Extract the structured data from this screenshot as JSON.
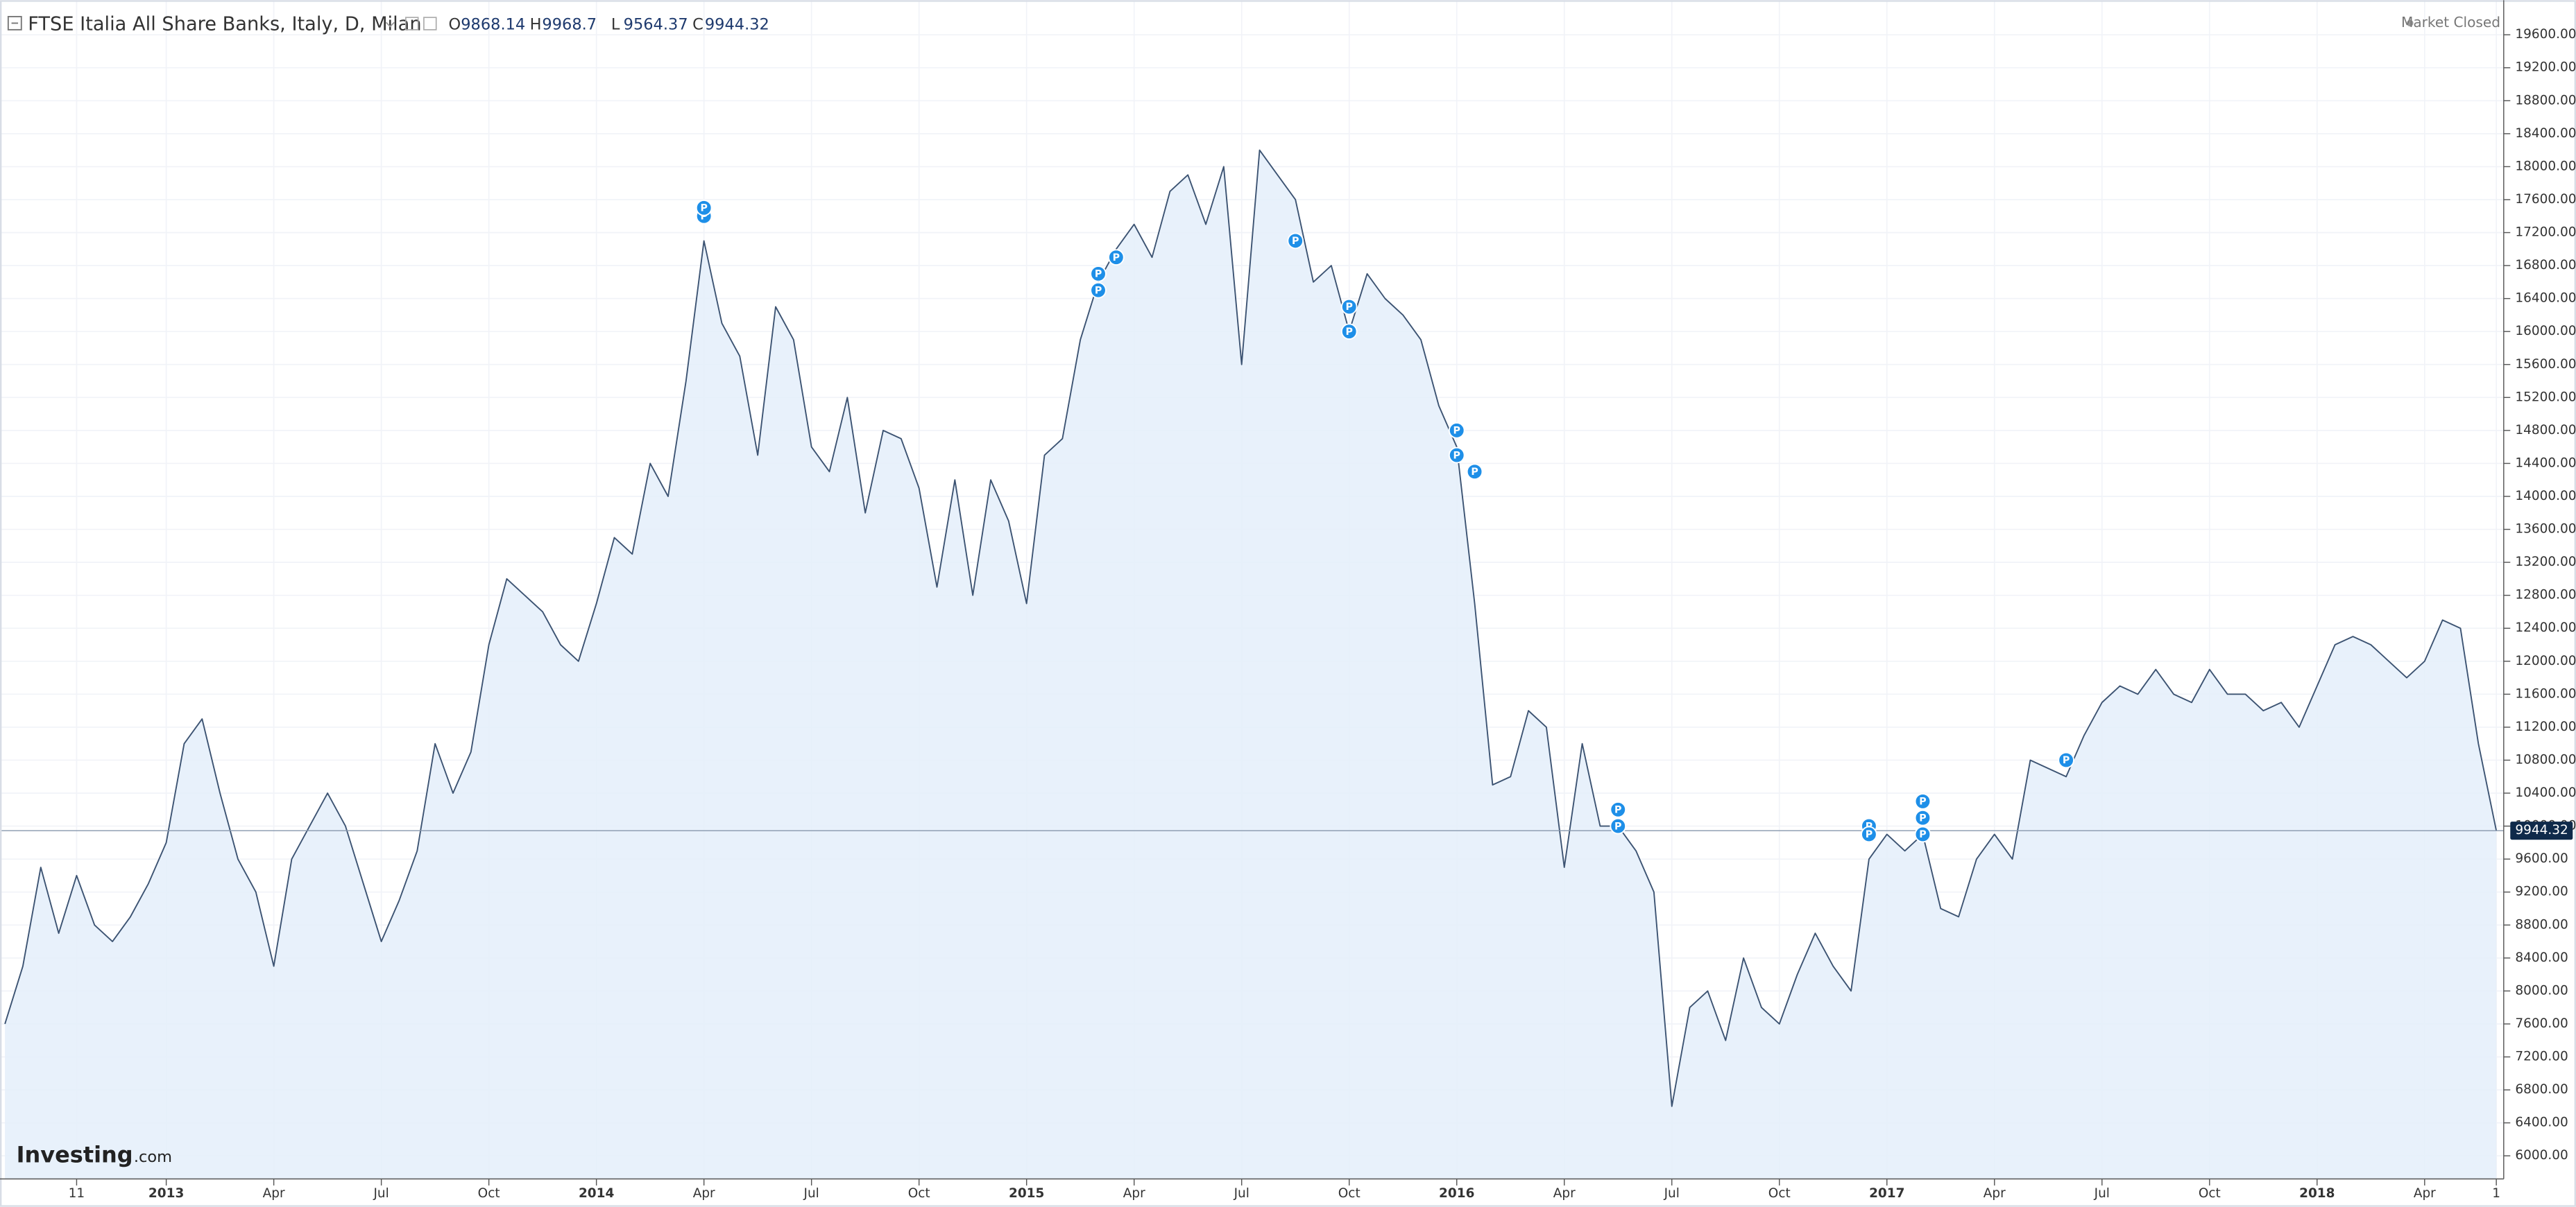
{
  "chart_data": {
    "type": "area",
    "title": "FTSE Italia All Share Banks, Italy, D, Milan",
    "ohlc": [
      {
        "label": "O",
        "value": 9868.14
      },
      {
        "label": "H",
        "value": 9968.7
      },
      {
        "label": "L",
        "value": 9564.37
      },
      {
        "label": "C",
        "value": 9944.32
      }
    ],
    "status": "Market Closed",
    "logo": {
      "name": "Investing",
      "suffix": ".com"
    },
    "categories": [
      null,
      null,
      null,
      null,
      "11",
      null,
      null,
      null,
      null,
      "2013",
      null,
      null,
      null,
      null,
      null,
      "Apr",
      null,
      null,
      null,
      null,
      null,
      "Jul",
      null,
      null,
      null,
      null,
      null,
      "Oct",
      null,
      null,
      null,
      null,
      null,
      "2014",
      null,
      null,
      null,
      null,
      null,
      "Apr",
      null,
      null,
      null,
      null,
      null,
      "Jul",
      null,
      null,
      null,
      null,
      null,
      "Oct",
      null,
      null,
      null,
      null,
      null,
      "2015",
      null,
      null,
      null,
      null,
      null,
      "Apr",
      null,
      null,
      null,
      null,
      null,
      "Jul",
      null,
      null,
      null,
      null,
      null,
      "Oct",
      null,
      null,
      null,
      null,
      null,
      "2016",
      null,
      null,
      null,
      null,
      null,
      "Apr",
      null,
      null,
      null,
      null,
      null,
      "Jul",
      null,
      null,
      null,
      null,
      null,
      "Oct",
      null,
      null,
      null,
      null,
      null,
      "2017",
      null,
      null,
      null,
      null,
      null,
      "Apr",
      null,
      null,
      null,
      null,
      null,
      "Jul",
      null,
      null,
      null,
      null,
      null,
      "Oct",
      null,
      null,
      null,
      null,
      null,
      "2018",
      null,
      null,
      null,
      null,
      null,
      "Apr",
      null,
      null,
      null,
      "1"
    ],
    "series": [
      {
        "name": "FTSE Italia All Share Banks",
        "color": "#3c5372",
        "fill": "#e4eefa",
        "values": [
          7600,
          8300,
          9500,
          8700,
          9400,
          8800,
          8600,
          8900,
          9300,
          9800,
          11000,
          11300,
          10400,
          9600,
          9200,
          8300,
          9600,
          10000,
          10400,
          10000,
          9300,
          8600,
          9100,
          9700,
          11000,
          10400,
          10900,
          12200,
          13000,
          12800,
          12600,
          12200,
          12000,
          12700,
          13500,
          13300,
          14400,
          14000,
          15400,
          17100,
          16100,
          15700,
          14500,
          16300,
          15900,
          14600,
          14300,
          15200,
          13800,
          14800,
          14700,
          14100,
          12900,
          14200,
          12800,
          14200,
          13700,
          12700,
          14500,
          14700,
          15900,
          16600,
          17000,
          17300,
          16900,
          17700,
          17900,
          17300,
          18000,
          15600,
          18200,
          17900,
          17600,
          16600,
          16800,
          16000,
          16700,
          16400,
          16200,
          15900,
          15100,
          14600,
          12700,
          10500,
          10600,
          11400,
          11200,
          9500,
          11000,
          10000,
          10000,
          9700,
          9200,
          6600,
          7800,
          8000,
          7400,
          8400,
          7800,
          7600,
          8200,
          8700,
          8300,
          8000,
          9600,
          9900,
          9700,
          9900,
          9000,
          8900,
          9600,
          9900,
          9600,
          10800,
          10700,
          10600,
          11100,
          11500,
          11700,
          11600,
          11900,
          11600,
          11500,
          11900,
          11600,
          11600,
          11400,
          11500,
          11200,
          11700,
          12200,
          12300,
          12200,
          12000,
          11800,
          12000,
          12500,
          12400,
          11000,
          9944.32
        ]
      }
    ],
    "annotations": [
      {
        "label": "P",
        "index": 39,
        "value": 17400
      },
      {
        "label": "P",
        "index": 39,
        "value": 17500
      },
      {
        "label": "P",
        "index": 61,
        "value": 16700
      },
      {
        "label": "P",
        "index": 62,
        "value": 16900
      },
      {
        "label": "P",
        "index": 61,
        "value": 16500
      },
      {
        "label": "P",
        "index": 72,
        "value": 17100
      },
      {
        "label": "P",
        "index": 75,
        "value": 16300
      },
      {
        "label": "P",
        "index": 75,
        "value": 16000
      },
      {
        "label": "P",
        "index": 81,
        "value": 14800
      },
      {
        "label": "P",
        "index": 81,
        "value": 14500
      },
      {
        "label": "P",
        "index": 82,
        "value": 14300
      },
      {
        "label": "P",
        "index": 90,
        "value": 10200
      },
      {
        "label": "P",
        "index": 90,
        "value": 10000
      },
      {
        "label": "P",
        "index": 104,
        "value": 10000
      },
      {
        "label": "P",
        "index": 104,
        "value": 9900
      },
      {
        "label": "P",
        "index": 107,
        "value": 10300
      },
      {
        "label": "P",
        "index": 107,
        "value": 10100
      },
      {
        "label": "P",
        "index": 107,
        "value": 9900
      },
      {
        "label": "P",
        "index": 115,
        "value": 10800
      }
    ],
    "ylim": [
      5720,
      19920
    ],
    "yticks": [
      {
        "value": 6000,
        "label": "6000.00"
      },
      {
        "value": 6400,
        "label": "6400.00"
      },
      {
        "value": 6800,
        "label": "6800.00"
      },
      {
        "value": 7200,
        "label": "7200.00"
      },
      {
        "value": 7600,
        "label": "7600.00"
      },
      {
        "value": 8000,
        "label": "8000.00"
      },
      {
        "value": 8400,
        "label": "8400.00"
      },
      {
        "value": 8800,
        "label": "8800.00"
      },
      {
        "value": 9200,
        "label": "9200.00"
      },
      {
        "value": 9600,
        "label": "9600.00"
      },
      {
        "value": 10000,
        "label": "10000.00"
      },
      {
        "value": 10400,
        "label": "10400.00"
      },
      {
        "value": 10800,
        "label": "10800.00"
      },
      {
        "value": 11200,
        "label": "11200.00"
      },
      {
        "value": 11600,
        "label": "11600.00"
      },
      {
        "value": 12000,
        "label": "12000.00"
      },
      {
        "value": 12400,
        "label": "12400.00"
      },
      {
        "value": 12800,
        "label": "12800.00"
      },
      {
        "value": 13200,
        "label": "13200.00"
      },
      {
        "value": 13600,
        "label": "13600.00"
      },
      {
        "value": 14000,
        "label": "14000.00"
      },
      {
        "value": 14400,
        "label": "14400.00"
      },
      {
        "value": 14800,
        "label": "14800.00"
      },
      {
        "value": 15200,
        "label": "15200.00"
      },
      {
        "value": 15600,
        "label": "15600.00"
      },
      {
        "value": 16000,
        "label": "16000.00"
      },
      {
        "value": 16400,
        "label": "16400.00"
      },
      {
        "value": 16800,
        "label": "16800.00"
      },
      {
        "value": 17200,
        "label": "17200.00"
      },
      {
        "value": 17600,
        "label": "17600.00"
      },
      {
        "value": 18000,
        "label": "18000.00"
      },
      {
        "value": 18400,
        "label": "18400.00"
      },
      {
        "value": 18800,
        "label": "18800.00"
      },
      {
        "value": 19200,
        "label": "19200.00"
      },
      {
        "value": 19600,
        "label": "19600.00"
      }
    ],
    "grid": true,
    "axis_side": "right"
  }
}
